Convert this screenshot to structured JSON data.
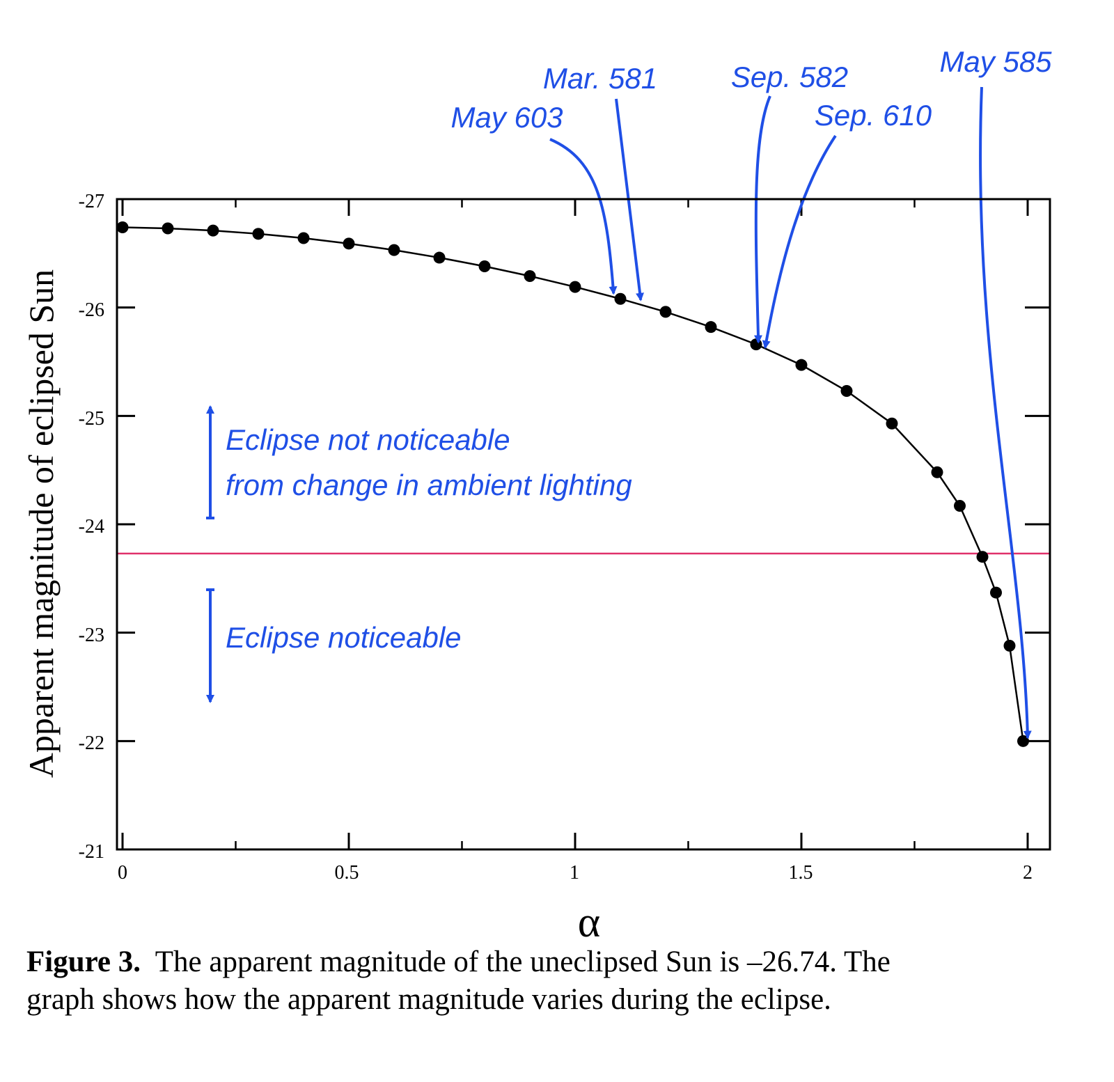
{
  "chart_data": {
    "type": "scatter",
    "title": "",
    "xlabel": "α",
    "ylabel": "Apparent magnitude of eclipsed Sun",
    "xlim": [
      0,
      2.05
    ],
    "ylim": [
      -27,
      -21
    ],
    "x_ticks": [
      "0",
      "0.5",
      "1",
      "1.5",
      "2"
    ],
    "x_tick_values": [
      0,
      0.5,
      1,
      1.5,
      2
    ],
    "y_ticks": [
      "-27",
      "-26",
      "-25",
      "-24",
      "-23",
      "-22",
      "-21"
    ],
    "y_tick_values": [
      -27,
      -26,
      -25,
      -24,
      -23,
      -22,
      -21
    ],
    "series": [
      {
        "name": "Apparent magnitude",
        "style": "line-with-markers",
        "x": [
          0,
          0.1,
          0.2,
          0.3,
          0.4,
          0.5,
          0.6,
          0.7,
          0.8,
          0.9,
          1.0,
          1.1,
          1.2,
          1.3,
          1.4,
          1.5,
          1.6,
          1.7,
          1.8,
          1.85,
          1.9,
          1.93,
          1.96,
          1.99
        ],
        "y": [
          -26.74,
          -26.73,
          -26.71,
          -26.68,
          -26.64,
          -26.59,
          -26.53,
          -26.46,
          -26.38,
          -26.29,
          -26.19,
          -26.08,
          -25.96,
          -25.82,
          -25.66,
          -25.47,
          -25.23,
          -24.93,
          -24.48,
          -24.17,
          -23.7,
          -23.37,
          -22.88,
          -22.0
        ]
      }
    ],
    "threshold": {
      "y": -23.73,
      "color": "#e0306a"
    },
    "annotations": [
      {
        "label": "May 603",
        "x": 1.085,
        "y": -26.13
      },
      {
        "label": "Mar. 581",
        "x": 1.145,
        "y": -26.07
      },
      {
        "label": "Sep. 582",
        "x": 1.405,
        "y": -25.68
      },
      {
        "label": "Sep. 610",
        "x": 1.42,
        "y": -25.63
      },
      {
        "label": "May 585",
        "x": 2.0,
        "y": -22.03
      }
    ],
    "region_labels": {
      "above_line1": "Eclipse not noticeable",
      "above_line2": "from change in ambient lighting",
      "below": "Eclipse noticeable"
    },
    "colors": {
      "line": "#000000",
      "marker": "#000000",
      "annotation": "#1f4fe6",
      "threshold": "#e0306a"
    }
  },
  "caption": {
    "label": "Figure 3.",
    "line1": "The apparent magnitude of the uneclipsed Sun is –26.74. The",
    "line2": "graph shows how the apparent magnitude varies during the eclipse."
  }
}
